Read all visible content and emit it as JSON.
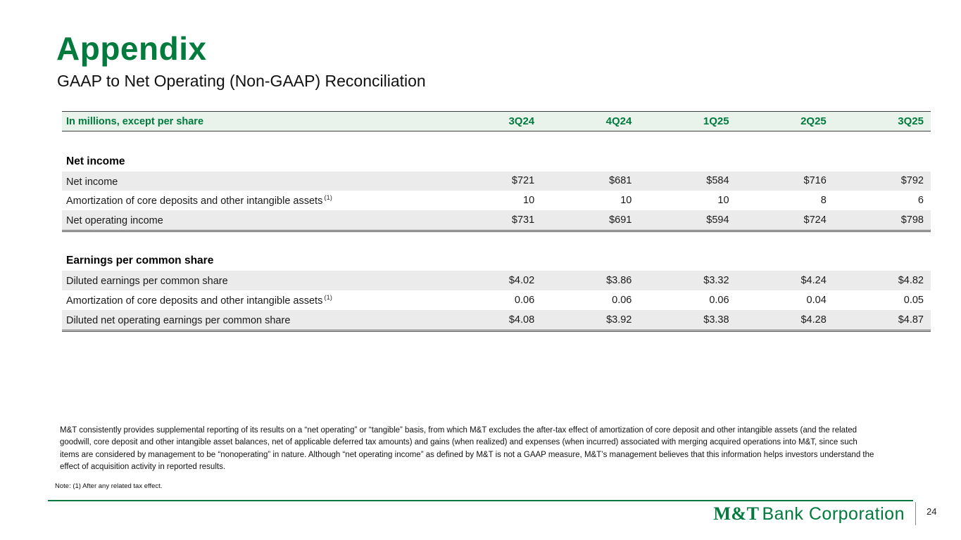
{
  "slide": {
    "title": "Appendix",
    "subtitle": "GAAP to Net Operating (Non-GAAP) Reconciliation",
    "page_number": "24",
    "logo": {
      "mt": "M&T",
      "rest": "Bank Corporation"
    }
  },
  "table": {
    "header": [
      "In millions, except per share",
      "3Q24",
      "4Q24",
      "1Q25",
      "2Q25",
      "3Q25"
    ],
    "sections": [
      {
        "title": "Net income",
        "rows": [
          {
            "label": "Net income",
            "sup": "",
            "values": [
              "$721",
              "$681",
              "$584",
              "$716",
              "$792"
            ]
          },
          {
            "label": "Amortization of core deposits and other intangible assets",
            "sup": "(1)",
            "values": [
              "10",
              "10",
              "10",
              "8",
              "6"
            ]
          },
          {
            "label": "Net operating income",
            "sup": "",
            "values": [
              "$731",
              "$691",
              "$594",
              "$724",
              "$798"
            ]
          }
        ]
      },
      {
        "title": "Earnings per common share",
        "rows": [
          {
            "label": "Diluted earnings per common share",
            "sup": "",
            "values": [
              "$4.02",
              "$3.86",
              "$3.32",
              "$4.24",
              "$4.82"
            ]
          },
          {
            "label": "Amortization of core deposits and other intangible assets",
            "sup": "(1)",
            "values": [
              "0.06",
              "0.06",
              "0.06",
              "0.04",
              "0.05"
            ]
          },
          {
            "label": "Diluted net operating earnings per common share",
            "sup": "",
            "values": [
              "$4.08",
              "$3.92",
              "$3.38",
              "$4.28",
              "$4.87"
            ]
          }
        ]
      }
    ]
  },
  "notes": {
    "paragraph": "M&T consistently provides supplemental reporting of its results on a “net operating” or “tangible” basis, from which M&T excludes the after-tax effect of amortization of core deposit and other intangible assets (and the related goodwill, core deposit and other intangible asset balances, net of applicable deferred tax amounts) and gains (when realized) and expenses (when incurred) associated with merging acquired operations into M&T, since such items are considered by management to be “nonoperating” in nature. Although “net operating income” as defined by M&T is not a GAAP measure, M&T’s management believes that this information helps investors understand the effect of acquisition activity in reported results.",
    "footnote": "Note: (1) After any related tax effect."
  },
  "colors": {
    "accent": "#007a3d",
    "header_bg": "#e9f3ec",
    "row_shade": "#ebebeb"
  }
}
